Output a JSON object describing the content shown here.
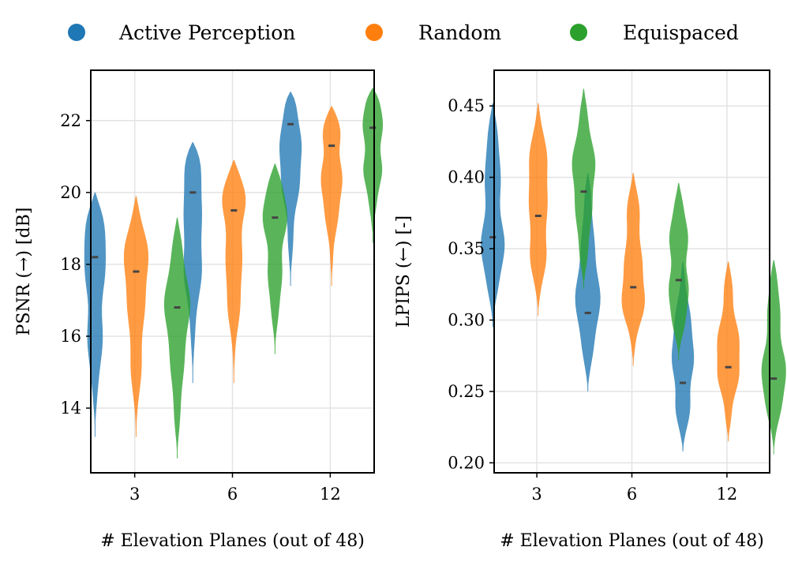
{
  "legend": [
    {
      "label": "Active Perception",
      "color": "#1f77b4"
    },
    {
      "label": "Random",
      "color": "#ff7f0e"
    },
    {
      "label": "Equispaced",
      "color": "#2ca02c"
    }
  ],
  "chart_data": [
    {
      "type": "violin",
      "title": "",
      "xlabel": "# Elevation Planes (out of 48)",
      "ylabel": "PSNR (→) [dB]",
      "categories": [
        "3",
        "6",
        "12"
      ],
      "yticks": [
        14,
        16,
        18,
        20,
        22
      ],
      "ylim": [
        12.2,
        23.4
      ],
      "grid": true,
      "legend_position": "top",
      "series": [
        {
          "name": "Active Perception",
          "color": "#1f77b4",
          "medians": [
            18.2,
            20.0,
            21.9
          ],
          "mins": [
            13.2,
            14.7,
            17.4
          ],
          "maxs": [
            20.0,
            21.4,
            22.8
          ]
        },
        {
          "name": "Random",
          "color": "#ff7f0e",
          "medians": [
            17.8,
            19.5,
            21.3
          ],
          "mins": [
            13.2,
            14.7,
            17.4
          ],
          "maxs": [
            19.9,
            20.9,
            22.4
          ]
        },
        {
          "name": "Equispaced",
          "color": "#2ca02c",
          "medians": [
            16.8,
            19.3,
            21.8
          ],
          "mins": [
            12.6,
            15.5,
            18.6
          ],
          "maxs": [
            19.3,
            20.8,
            22.9
          ]
        }
      ]
    },
    {
      "type": "violin",
      "title": "",
      "xlabel": "# Elevation Planes (out of 48)",
      "ylabel": "LPIPS (←) [-]",
      "categories": [
        "3",
        "6",
        "12"
      ],
      "yticks": [
        0.2,
        0.25,
        0.3,
        0.35,
        0.4,
        0.45
      ],
      "ylim": [
        0.193,
        0.475
      ],
      "grid": true,
      "legend_position": "top",
      "series": [
        {
          "name": "Active Perception",
          "color": "#1f77b4",
          "medians": [
            0.358,
            0.305,
            0.256
          ],
          "mins": [
            0.295,
            0.25,
            0.208
          ],
          "maxs": [
            0.452,
            0.403,
            0.341
          ]
        },
        {
          "name": "Random",
          "color": "#ff7f0e",
          "medians": [
            0.373,
            0.323,
            0.267
          ],
          "mins": [
            0.303,
            0.268,
            0.215
          ],
          "maxs": [
            0.452,
            0.403,
            0.341
          ]
        },
        {
          "name": "Equispaced",
          "color": "#2ca02c",
          "medians": [
            0.39,
            0.328,
            0.259
          ],
          "mins": [
            0.322,
            0.272,
            0.206
          ],
          "maxs": [
            0.462,
            0.396,
            0.342
          ]
        }
      ]
    }
  ]
}
